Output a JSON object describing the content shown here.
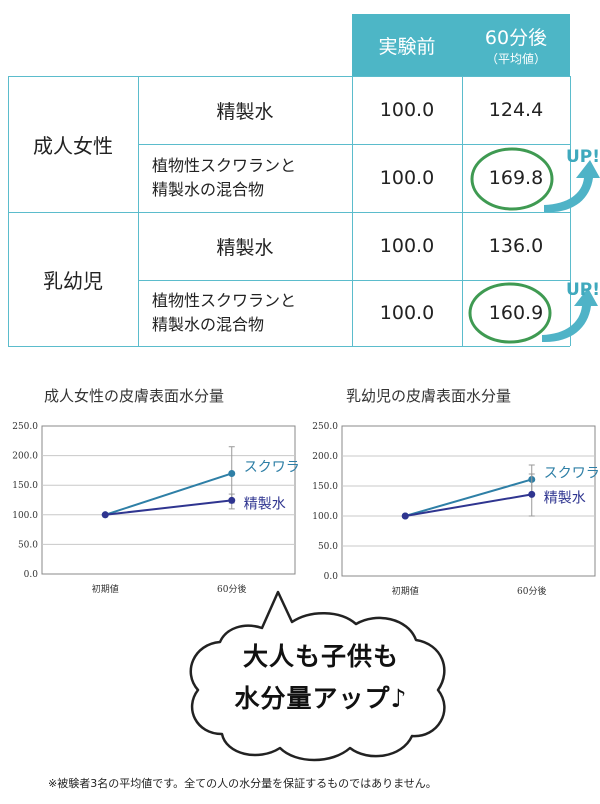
{
  "table": {
    "headers": {
      "before": "実験前",
      "after": "60分後",
      "after_note": "（平均値）"
    },
    "groups": [
      {
        "name": "成人女性",
        "rows": [
          {
            "label_line1": "精製水",
            "label_line2": "",
            "before": "100.0",
            "after": "124.4",
            "highlight": false
          },
          {
            "label_line1": "植物性スクワランと",
            "label_line2": "精製水の混合物",
            "before": "100.0",
            "after": "169.8",
            "highlight": true
          }
        ]
      },
      {
        "name": "乳幼児",
        "rows": [
          {
            "label_line1": "精製水",
            "label_line2": "",
            "before": "100.0",
            "after": "136.0",
            "highlight": false
          },
          {
            "label_line1": "植物性スクワランと",
            "label_line2": "精製水の混合物",
            "before": "100.0",
            "after": "160.9",
            "highlight": true
          }
        ]
      }
    ],
    "up_label": "UP!"
  },
  "chart_data": [
    {
      "type": "line",
      "title": "成人女性の皮膚表面水分量",
      "categories": [
        "初期値",
        "60分後"
      ],
      "y_ticks": [
        "250.0",
        "200.0",
        "150.0",
        "100.0",
        "50.0",
        "0.0"
      ],
      "ylim": [
        0,
        250
      ],
      "series": [
        {
          "name": "スクワラン",
          "values": [
            100,
            169.8
          ],
          "color": "#2e7fa6",
          "error_bar": [
            null,
            [
              120,
              215
            ]
          ]
        },
        {
          "name": "精製水",
          "values": [
            100,
            124.4
          ],
          "color": "#2f3590",
          "error_bar": [
            null,
            [
              110,
              135
            ]
          ]
        }
      ]
    },
    {
      "type": "line",
      "title": "乳幼児の皮膚表面水分量",
      "categories": [
        "初期値",
        "60分後"
      ],
      "y_ticks": [
        "250.0",
        "200.0",
        "150.0",
        "100.0",
        "50.0",
        "0.0"
      ],
      "ylim": [
        0,
        250
      ],
      "series": [
        {
          "name": "スクワラン",
          "values": [
            100,
            160.9
          ],
          "color": "#2e7fa6",
          "error_bar": [
            null,
            [
              135,
              185
            ]
          ]
        },
        {
          "name": "精製水",
          "values": [
            100,
            136.0
          ],
          "color": "#2f3590",
          "error_bar": [
            null,
            [
              100,
              170
            ]
          ]
        }
      ]
    }
  ],
  "bubble": {
    "line1": "大人も子供も",
    "line2": "水分量アップ♪"
  },
  "footnote": "※被験者3名の平均値です。全ての人の水分量を保証するものではありません。",
  "colors": {
    "teal": "#4db6c6",
    "green_circle": "#3f9a52",
    "arrow": "#4fb3c7"
  }
}
